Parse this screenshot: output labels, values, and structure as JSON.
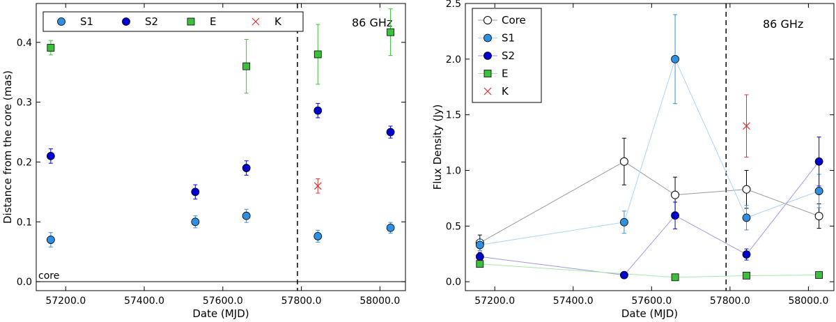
{
  "chart_data": [
    {
      "type": "scatter",
      "xlabel": "Date (MJD)",
      "ylabel": "Distance from the core (mas)",
      "xlim": [
        57125,
        58065
      ],
      "ylim": [
        -0.015,
        0.465
      ],
      "xticks": [
        57200,
        57400,
        57600,
        57800,
        58000
      ],
      "xtick_labels": [
        "57200.0",
        "57400.0",
        "57600.0",
        "57800.0",
        "58000.0"
      ],
      "yticks": [
        0.0,
        0.1,
        0.2,
        0.3,
        0.4
      ],
      "ytick_labels": [
        "0.0",
        "0.1",
        "0.2",
        "0.3",
        "0.4"
      ],
      "vline_x": 57790,
      "annotation": "86 GHz",
      "core_label": "core",
      "core_line_y": 0.0,
      "legend_loc": "top-left",
      "series": [
        {
          "name": "S1",
          "marker": "circle",
          "color": "#2f8fe0",
          "line": false,
          "x": [
            57162,
            57530,
            57660,
            57842,
            58027
          ],
          "y": [
            0.07,
            0.1,
            0.11,
            0.076,
            0.09
          ],
          "err": [
            0.012,
            0.01,
            0.011,
            0.01,
            0.009
          ]
        },
        {
          "name": "S2",
          "marker": "circle",
          "color": "#0000cc",
          "line": false,
          "x": [
            57162,
            57530,
            57660,
            57842,
            58027
          ],
          "y": [
            0.21,
            0.15,
            0.19,
            0.286,
            0.25
          ],
          "err": [
            0.012,
            0.012,
            0.012,
            0.012,
            0.01
          ]
        },
        {
          "name": "E",
          "marker": "square",
          "color": "#3cbf3c",
          "line": false,
          "x": [
            57162,
            57660,
            57842,
            58027
          ],
          "y": [
            0.391,
            0.36,
            0.38,
            0.417
          ],
          "err": [
            0.012,
            0.045,
            0.05,
            0.039
          ]
        },
        {
          "name": "K",
          "marker": "x",
          "color": "#e03030",
          "line": false,
          "x": [
            57842
          ],
          "y": [
            0.16
          ],
          "err": [
            0.012
          ]
        }
      ]
    },
    {
      "type": "line",
      "xlabel": "Date (MJD)",
      "ylabel": "Flux Density (Jy)",
      "xlim": [
        57125,
        58065
      ],
      "ylim": [
        -0.08,
        2.5
      ],
      "xticks": [
        57200,
        57400,
        57600,
        57800,
        58000
      ],
      "xtick_labels": [
        "57200.0",
        "57400.0",
        "57600.0",
        "57800.0",
        "58000.0"
      ],
      "yticks": [
        0.0,
        0.5,
        1.0,
        1.5,
        2.0,
        2.5
      ],
      "ytick_labels": [
        "0.0",
        "0.5",
        "1.0",
        "1.5",
        "2.0",
        "2.5"
      ],
      "vline_x": 57790,
      "annotation": "86 GHz",
      "legend_loc": "top-left",
      "series": [
        {
          "name": "Core",
          "marker": "open-circle",
          "color": "#000000",
          "linecolor": "#999999",
          "line": true,
          "x": [
            57162,
            57530,
            57660,
            57842,
            58027
          ],
          "y": [
            0.35,
            1.08,
            0.78,
            0.83,
            0.59
          ],
          "err": [
            0.07,
            0.21,
            0.16,
            0.17,
            0.11
          ]
        },
        {
          "name": "S1",
          "marker": "circle",
          "color": "#2f8fe0",
          "linecolor": "#a9d4f5",
          "line": true,
          "x": [
            57162,
            57530,
            57660,
            57842,
            58027
          ],
          "y": [
            0.33,
            0.535,
            2.0,
            0.575,
            0.815
          ],
          "err": [
            0.05,
            0.1,
            0.4,
            0.11,
            0.15
          ]
        },
        {
          "name": "S2",
          "marker": "circle",
          "color": "#0000cc",
          "linecolor": "#9a9ae6",
          "line": true,
          "x": [
            57162,
            57530,
            57660,
            57842,
            58027
          ],
          "y": [
            0.225,
            0.06,
            0.595,
            0.245,
            1.08
          ],
          "err": [
            0.04,
            0.0,
            0.12,
            0.05,
            0.22
          ]
        },
        {
          "name": "E",
          "marker": "square",
          "color": "#3cbf3c",
          "linecolor": "#a8e6a8",
          "line": true,
          "x": [
            57162,
            57660,
            57842,
            58027
          ],
          "y": [
            0.16,
            0.04,
            0.055,
            0.06
          ],
          "err": [
            0.0,
            0.0,
            0.0,
            0.0
          ]
        },
        {
          "name": "K",
          "marker": "x",
          "color": "#e03030",
          "linecolor": "#e03030",
          "line": false,
          "x": [
            57842
          ],
          "y": [
            1.4
          ],
          "err": [
            0.28
          ]
        }
      ]
    }
  ]
}
